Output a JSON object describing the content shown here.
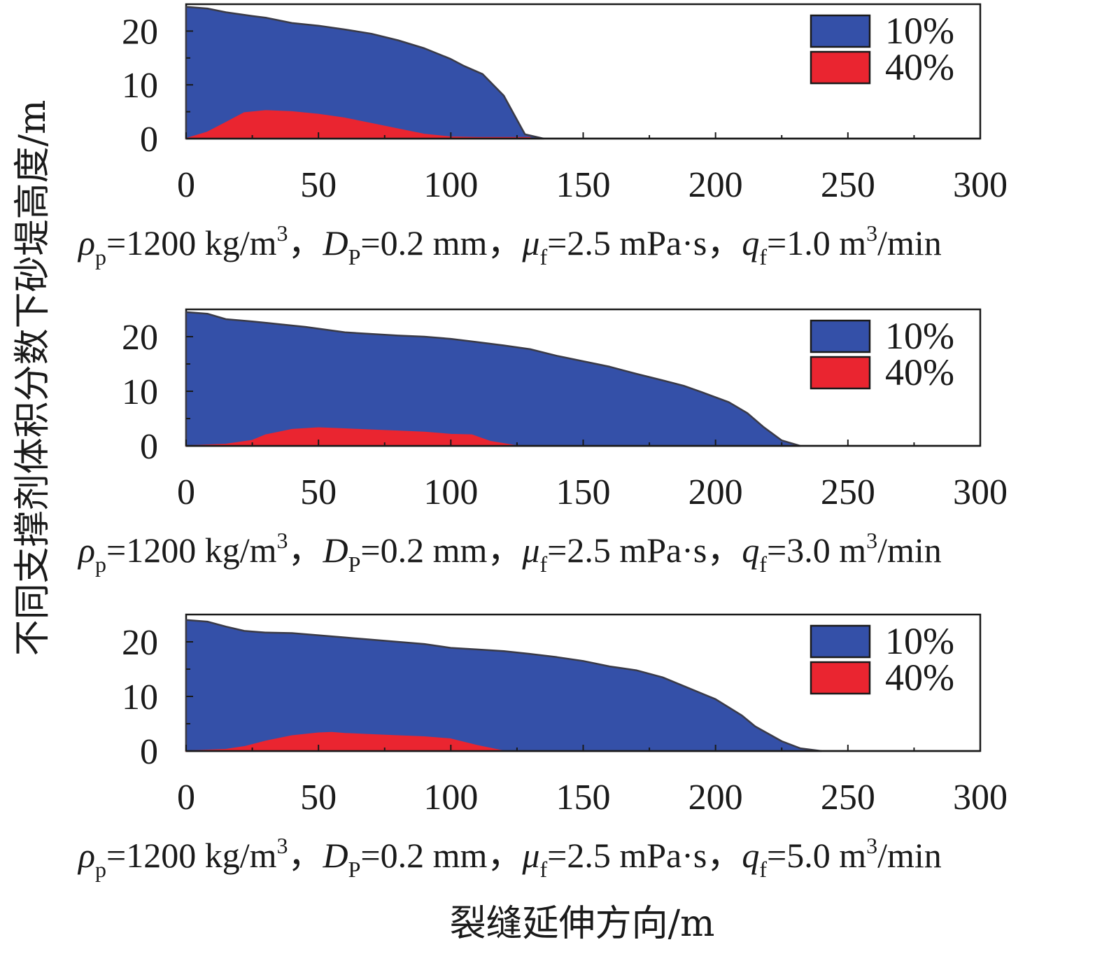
{
  "chart_data": [
    {
      "type": "area",
      "caption": {
        "rho_sym": "ρ",
        "rho_sub": "p",
        "rho_val": "=1200 kg/m",
        "rho_sup": "3",
        "sep1": "，",
        "d_sym": "D",
        "d_sub": "P",
        "d_val": "=0.2 mm",
        "sep2": "，",
        "mu_sym": "μ",
        "mu_sub": "f",
        "mu_val": "=2.5 mPa·s",
        "sep3": "，",
        "q_sym": "q",
        "q_sub": "f",
        "q_val": "=1.0 m",
        "q_sup": "3",
        "q_unit": "/min"
      },
      "xlim": [
        0,
        300
      ],
      "ylim": [
        0,
        25
      ],
      "x_ticks": [
        "0",
        "50",
        "100",
        "150",
        "200",
        "250",
        "300"
      ],
      "y_ticks": [
        "0",
        "10",
        "20"
      ],
      "legend_position": "top-right",
      "series": [
        {
          "name": "10%",
          "color": "#3450a8",
          "x": [
            0,
            8,
            15,
            25,
            30,
            40,
            50,
            60,
            70,
            80,
            90,
            100,
            105,
            112,
            120,
            125,
            128,
            135
          ],
          "y": [
            24.5,
            24.2,
            23.5,
            22.8,
            22.5,
            21.5,
            21.0,
            20.3,
            19.5,
            18.3,
            16.8,
            14.8,
            13.5,
            12.0,
            8.0,
            3.5,
            0.8,
            0
          ]
        },
        {
          "name": "40%",
          "color": "#ea2530",
          "x": [
            0,
            8,
            15,
            22,
            30,
            40,
            50,
            60,
            70,
            80,
            90,
            100,
            110,
            120,
            130
          ],
          "y": [
            0,
            1.2,
            3.0,
            4.8,
            5.2,
            5.0,
            4.5,
            3.8,
            2.8,
            1.8,
            0.8,
            0.3,
            0.2,
            0.2,
            0.2
          ]
        }
      ]
    },
    {
      "type": "area",
      "caption": {
        "rho_sym": "ρ",
        "rho_sub": "p",
        "rho_val": "=1200 kg/m",
        "rho_sup": "3",
        "sep1": "，",
        "d_sym": "D",
        "d_sub": "P",
        "d_val": "=0.2 mm",
        "sep2": "，",
        "mu_sym": "μ",
        "mu_sub": "f",
        "mu_val": "=2.5 mPa·s",
        "sep3": "，",
        "q_sym": "q",
        "q_sub": "f",
        "q_val": "=3.0 m",
        "q_sup": "3",
        "q_unit": "/min"
      },
      "xlim": [
        0,
        300
      ],
      "ylim": [
        0,
        25
      ],
      "x_ticks": [
        "0",
        "50",
        "100",
        "150",
        "200",
        "250",
        "300"
      ],
      "y_ticks": [
        "0",
        "10",
        "20"
      ],
      "legend_position": "top-right",
      "series": [
        {
          "name": "10%",
          "color": "#3450a8",
          "x": [
            0,
            8,
            15,
            25,
            35,
            45,
            60,
            70,
            80,
            90,
            100,
            110,
            120,
            130,
            140,
            150,
            160,
            170,
            180,
            188,
            195,
            205,
            212,
            218,
            225,
            232
          ],
          "y": [
            24.5,
            24.2,
            23.2,
            22.8,
            22.3,
            21.8,
            20.8,
            20.5,
            20.2,
            20.0,
            19.6,
            19.0,
            18.4,
            17.7,
            16.5,
            15.5,
            14.5,
            13.2,
            12.0,
            11.0,
            9.8,
            8.0,
            6.0,
            3.5,
            1.0,
            0
          ]
        },
        {
          "name": "40%",
          "color": "#ea2530",
          "x": [
            0,
            15,
            25,
            30,
            40,
            50,
            60,
            70,
            80,
            90,
            100,
            108,
            115,
            125
          ],
          "y": [
            0,
            0.3,
            1.0,
            2.0,
            3.0,
            3.3,
            3.1,
            2.9,
            2.7,
            2.5,
            2.1,
            2.0,
            0.8,
            0
          ]
        }
      ]
    },
    {
      "type": "area",
      "caption": {
        "rho_sym": "ρ",
        "rho_sub": "p",
        "rho_val": "=1200 kg/m",
        "rho_sup": "3",
        "sep1": "，",
        "d_sym": "D",
        "d_sub": "P",
        "d_val": "=0.2 mm",
        "sep2": "，",
        "mu_sym": "μ",
        "mu_sub": "f",
        "mu_val": "=2.5 mPa·s",
        "sep3": "，",
        "q_sym": "q",
        "q_sub": "f",
        "q_val": "=5.0 m",
        "q_sup": "3",
        "q_unit": "/min"
      },
      "xlim": [
        0,
        300
      ],
      "ylim": [
        0,
        25
      ],
      "x_ticks": [
        "0",
        "50",
        "100",
        "150",
        "200",
        "250",
        "300"
      ],
      "y_ticks": [
        "0",
        "10",
        "20"
      ],
      "legend_position": "top-right",
      "series": [
        {
          "name": "10%",
          "color": "#3450a8",
          "x": [
            0,
            8,
            15,
            22,
            30,
            40,
            50,
            60,
            70,
            80,
            90,
            100,
            110,
            120,
            130,
            140,
            150,
            160,
            170,
            180,
            190,
            200,
            210,
            215,
            225,
            232,
            240
          ],
          "y": [
            24.0,
            23.7,
            22.8,
            22.0,
            21.7,
            21.6,
            21.2,
            20.8,
            20.4,
            20.0,
            19.6,
            18.9,
            18.6,
            18.3,
            17.8,
            17.2,
            16.5,
            15.5,
            14.8,
            13.5,
            11.5,
            9.5,
            6.5,
            4.5,
            1.8,
            0.5,
            0
          ]
        },
        {
          "name": "40%",
          "color": "#ea2530",
          "x": [
            0,
            15,
            22,
            30,
            40,
            50,
            55,
            60,
            70,
            80,
            90,
            100,
            110,
            120
          ],
          "y": [
            0,
            0.3,
            0.8,
            1.8,
            2.8,
            3.3,
            3.4,
            3.2,
            3.0,
            2.8,
            2.6,
            2.2,
            1.0,
            0
          ]
        }
      ]
    }
  ],
  "y_axis_title": "不同支撑剂体积分数下砂堤高度/m",
  "x_axis_title": "裂缝延伸方向/m"
}
